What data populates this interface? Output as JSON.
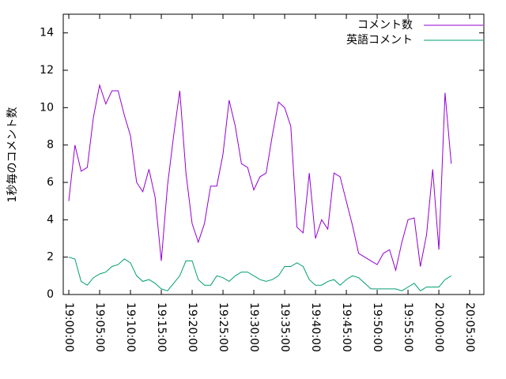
{
  "chart_data": {
    "type": "line",
    "ylabel": "1秒毎のコメント数",
    "x": [
      "19:00:00",
      "19:01:00",
      "19:02:00",
      "19:03:00",
      "19:04:00",
      "19:05:00",
      "19:06:00",
      "19:07:00",
      "19:08:00",
      "19:09:00",
      "19:10:00",
      "19:11:00",
      "19:12:00",
      "19:13:00",
      "19:14:00",
      "19:15:00",
      "19:16:00",
      "19:17:00",
      "19:18:00",
      "19:19:00",
      "19:20:00",
      "19:21:00",
      "19:22:00",
      "19:23:00",
      "19:24:00",
      "19:25:00",
      "19:26:00",
      "19:27:00",
      "19:28:00",
      "19:29:00",
      "19:30:00",
      "19:31:00",
      "19:32:00",
      "19:33:00",
      "19:34:00",
      "19:35:00",
      "19:36:00",
      "19:37:00",
      "19:38:00",
      "19:39:00",
      "19:40:00",
      "19:41:00",
      "19:42:00",
      "19:43:00",
      "19:44:00",
      "19:45:00",
      "19:46:00",
      "19:47:00",
      "19:48:00",
      "19:49:00",
      "19:50:00",
      "19:51:00",
      "19:52:00",
      "19:53:00",
      "19:54:00",
      "19:55:00",
      "19:56:00",
      "19:57:00",
      "19:58:00",
      "19:59:00",
      "20:00:00",
      "20:01:00",
      "20:02:00"
    ],
    "series": [
      {
        "name": "コメント数",
        "color": "#9400d3",
        "values": [
          5.0,
          8.0,
          6.6,
          6.8,
          9.5,
          11.2,
          10.2,
          10.9,
          10.9,
          9.6,
          8.5,
          6.0,
          5.5,
          6.7,
          5.2,
          1.8,
          5.8,
          8.5,
          10.9,
          6.5,
          3.8,
          2.8,
          3.8,
          5.8,
          5.8,
          7.5,
          10.4,
          9.0,
          7.0,
          6.8,
          5.6,
          6.3,
          6.5,
          8.5,
          10.3,
          10.0,
          9.0,
          3.6,
          3.3,
          6.5,
          3.0,
          4.0,
          3.5,
          6.5,
          6.3,
          5.0,
          3.7,
          2.2,
          2.0,
          1.8,
          1.6,
          2.2,
          2.4,
          1.3,
          2.8,
          4.0,
          4.1,
          1.5,
          3.2,
          6.7,
          2.4,
          10.8,
          7.0
        ]
      },
      {
        "name": "英語コメント",
        "color": "#009e73",
        "values": [
          2.0,
          1.9,
          0.7,
          0.5,
          0.9,
          1.1,
          1.2,
          1.5,
          1.6,
          1.9,
          1.7,
          1.0,
          0.7,
          0.8,
          0.6,
          0.3,
          0.2,
          0.6,
          1.0,
          1.8,
          1.8,
          0.8,
          0.5,
          0.5,
          1.0,
          0.9,
          0.7,
          1.0,
          1.2,
          1.2,
          1.0,
          0.8,
          0.7,
          0.8,
          1.0,
          1.5,
          1.5,
          1.7,
          1.5,
          0.8,
          0.5,
          0.5,
          0.7,
          0.8,
          0.5,
          0.8,
          1.0,
          0.9,
          0.6,
          0.3,
          0.3,
          0.3,
          0.3,
          0.3,
          0.2,
          0.4,
          0.6,
          0.2,
          0.4,
          0.4,
          0.4,
          0.8,
          1.0
        ]
      }
    ],
    "xlim": [
      "18:59:06",
      "20:07:18"
    ],
    "xticks": [
      "19:00:00",
      "19:05:00",
      "19:10:00",
      "19:15:00",
      "19:20:00",
      "19:25:00",
      "19:30:00",
      "19:35:00",
      "19:40:00",
      "19:45:00",
      "19:50:00",
      "19:55:00",
      "20:00:00",
      "20:05:00"
    ],
    "ylim": [
      0,
      15
    ],
    "yticks": [
      0,
      2,
      4,
      6,
      8,
      10,
      12,
      14
    ],
    "legend": "top-right"
  }
}
